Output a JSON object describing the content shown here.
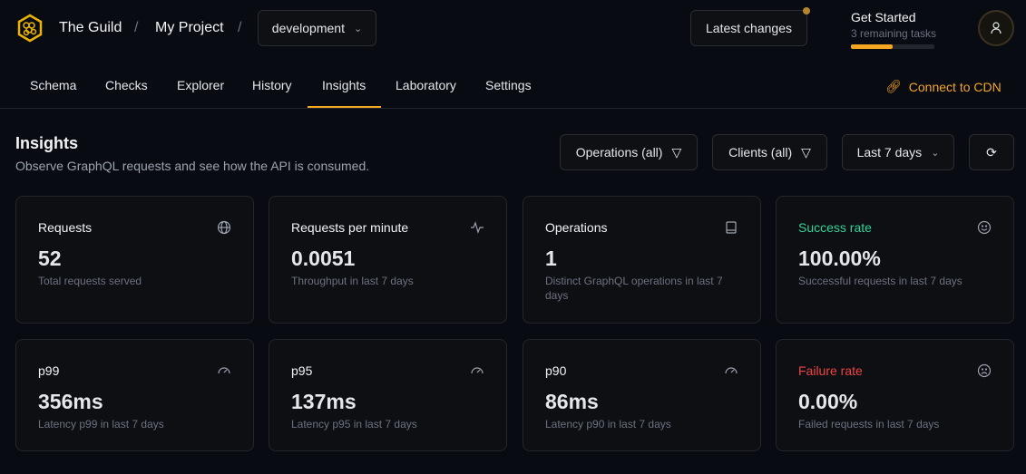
{
  "header": {
    "org": "The Guild",
    "project": "My Project",
    "target": "development",
    "latest_changes": "Latest changes",
    "get_started": {
      "title": "Get Started",
      "subtitle": "3 remaining tasks",
      "progress_percent": 50
    }
  },
  "nav": {
    "tabs": [
      "Schema",
      "Checks",
      "Explorer",
      "History",
      "Insights",
      "Laboratory",
      "Settings"
    ],
    "active": "Insights",
    "cdn": "Connect to CDN"
  },
  "page": {
    "title": "Insights",
    "subtitle": "Observe GraphQL requests and see how the API is consumed.",
    "filters": {
      "operations": "Operations (all)",
      "clients": "Clients (all)",
      "period": "Last 7 days"
    }
  },
  "colors": {
    "accent": "#f5a623",
    "success": "#34d399",
    "failure": "#ef4444"
  },
  "cards": [
    {
      "title": "Requests",
      "value": "52",
      "desc": "Total requests served",
      "icon": "globe-icon"
    },
    {
      "title": "Requests per minute",
      "value": "0.0051",
      "desc": "Throughput in last 7 days",
      "icon": "activity-icon"
    },
    {
      "title": "Operations",
      "value": "1",
      "desc": "Distinct GraphQL operations in last 7 days",
      "icon": "book-icon"
    },
    {
      "title": "Success rate",
      "value": "100.00%",
      "desc": "Successful requests in last 7 days",
      "icon": "smile-icon"
    },
    {
      "title": "p99",
      "value": "356ms",
      "desc": "Latency p99 in last 7 days",
      "icon": "gauge-icon"
    },
    {
      "title": "p95",
      "value": "137ms",
      "desc": "Latency p95 in last 7 days",
      "icon": "gauge-icon"
    },
    {
      "title": "p90",
      "value": "86ms",
      "desc": "Latency p90 in last 7 days",
      "icon": "gauge-icon"
    },
    {
      "title": "Failure rate",
      "value": "0.00%",
      "desc": "Failed requests in last 7 days",
      "icon": "frown-icon"
    }
  ]
}
